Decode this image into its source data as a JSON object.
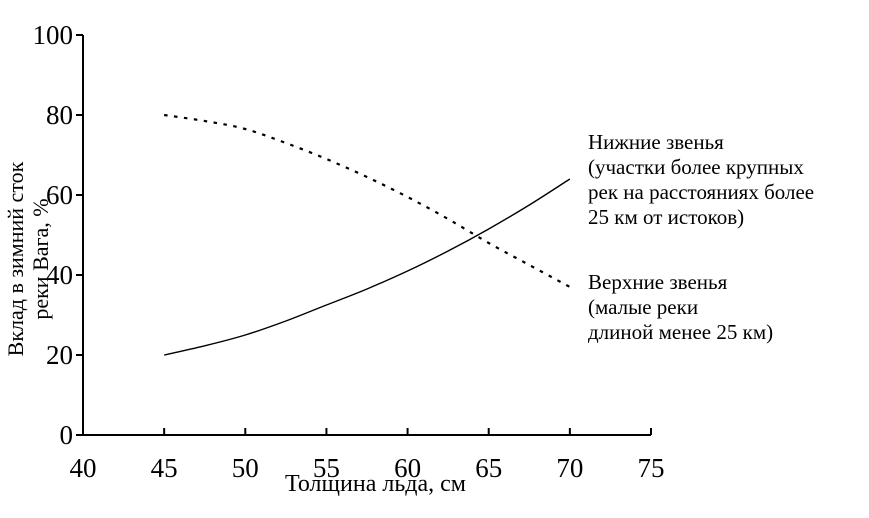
{
  "chart_data": {
    "type": "line",
    "title": "",
    "xlabel": "Толщина льда, см",
    "ylabel": "Вклад в зимний сток реки Вага, %",
    "ylabel_lines": [
      "Вклад в зимний сток",
      "реки Вага, %"
    ],
    "xlim": [
      40,
      75
    ],
    "ylim": [
      0,
      100
    ],
    "x_ticks": [
      "40",
      "45",
      "50",
      "55",
      "60",
      "65",
      "70",
      "75"
    ],
    "y_ticks": [
      "0",
      "20",
      "40",
      "60",
      "80",
      "100"
    ],
    "grid": false,
    "legend_position": "right-annotations",
    "colors": {
      "line": "#000000",
      "background": "#ffffff"
    },
    "series": [
      {
        "name": "Верхние звенья (малые реки длиной менее 25 км)",
        "style": "dotted",
        "x": [
          45,
          47.5,
          50,
          52.5,
          55,
          57.5,
          60,
          62.5,
          65,
          67.5,
          70
        ],
        "values": [
          80,
          78.5,
          76.5,
          73,
          69,
          64.5,
          59.5,
          54,
          48,
          42.5,
          37
        ]
      },
      {
        "name": "Нижние звенья (участки более крупных рек на расстояниях более 25 км от истоков)",
        "style": "solid",
        "x": [
          45,
          47.5,
          50,
          52.5,
          55,
          57.5,
          60,
          62.5,
          65,
          67.5,
          70
        ],
        "values": [
          20,
          22.3,
          25,
          28.5,
          32.5,
          36.5,
          41,
          46,
          51.5,
          57.5,
          64
        ]
      }
    ],
    "annotations": [
      {
        "series": "lower",
        "lines": [
          "Нижние звенья",
          "(участки более крупных",
          "рек на расстояниях более",
          "25 км от истоков)"
        ]
      },
      {
        "series": "upper",
        "lines": [
          "Верхние звенья",
          "(малые реки",
          "длиной менее 25 км)"
        ]
      }
    ]
  }
}
